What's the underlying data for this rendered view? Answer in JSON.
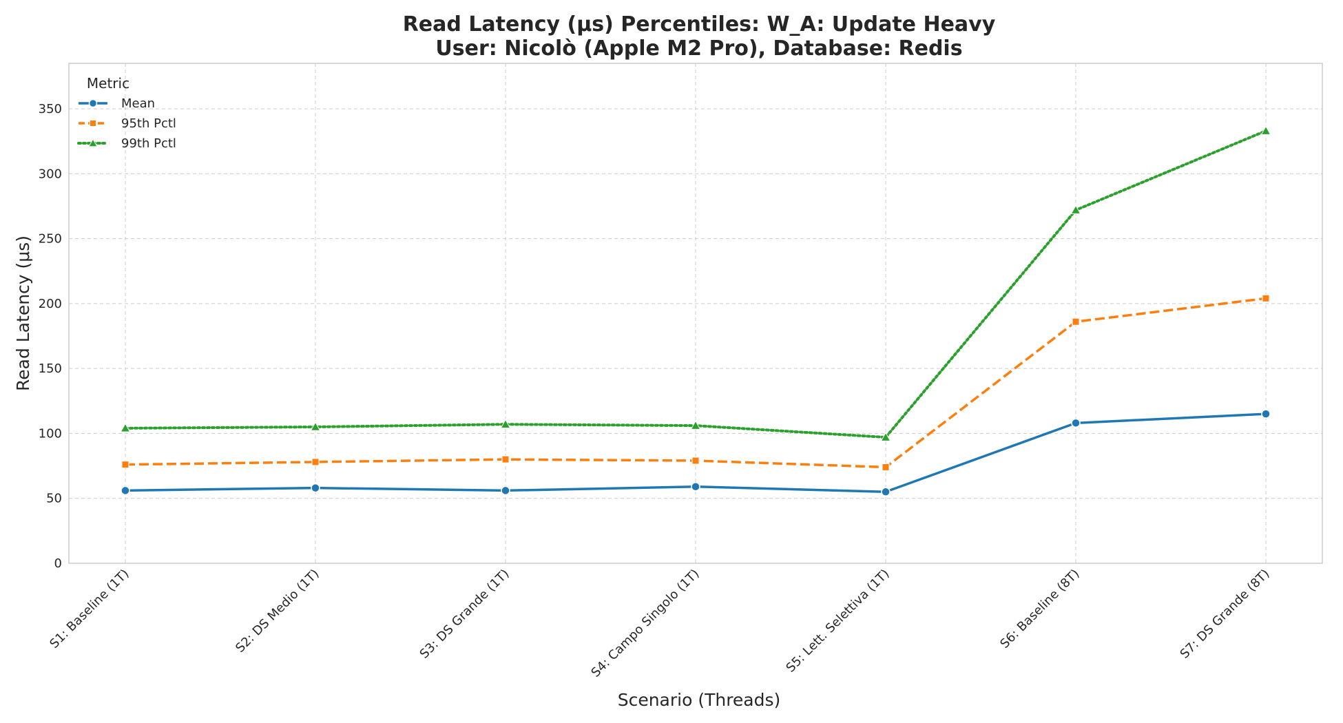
{
  "chart_data": {
    "type": "line",
    "title": "Read Latency (μs) Percentiles: W_A: Update Heavy",
    "subtitle": "User: Nicolò (Apple M2 Pro), Database: Redis",
    "xlabel": "Scenario (Threads)",
    "ylabel": "Read Latency (μs)",
    "ylim": [
      0,
      385
    ],
    "yticks": [
      0,
      50,
      100,
      150,
      200,
      250,
      300,
      350
    ],
    "grid": true,
    "legend_title": "Metric",
    "legend_position": "top-left",
    "categories": [
      "S1: Baseline (1T)",
      "S2: DS Medio (1T)",
      "S3: DS Grande (1T)",
      "S4: Campo Singolo (1T)",
      "S5: Lett. Selettiva (1T)",
      "S6: Baseline (8T)",
      "S7: DS Grande (8T)"
    ],
    "series": [
      {
        "name": "Mean",
        "color": "#1f77b4",
        "marker": "circle",
        "line_style": "solid",
        "values": [
          56,
          58,
          56,
          59,
          55,
          108,
          115
        ]
      },
      {
        "name": "95th Pctl",
        "color": "#ff7f0e",
        "marker": "square",
        "line_style": "dashed",
        "values": [
          76,
          78,
          80,
          79,
          74,
          186,
          204
        ]
      },
      {
        "name": "99th Pctl",
        "color": "#2ca02c",
        "marker": "triangle",
        "line_style": "dotted",
        "values": [
          104,
          105,
          107,
          106,
          97,
          272,
          333
        ]
      }
    ]
  }
}
